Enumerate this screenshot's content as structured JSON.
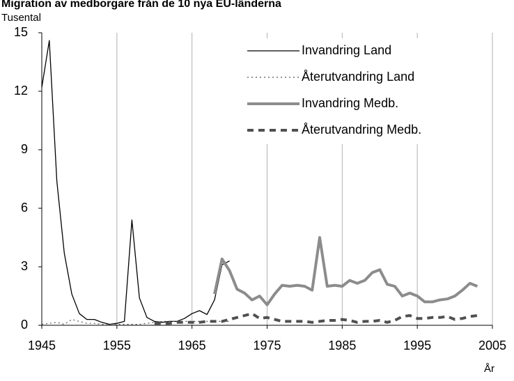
{
  "chart_data": {
    "type": "line",
    "title": "Migration av medborgare från de 10 nya EU-länderna",
    "y_label": "Tusental",
    "x_label": "År",
    "x": [
      1945,
      1946,
      1947,
      1948,
      1949,
      1950,
      1951,
      1952,
      1953,
      1954,
      1955,
      1956,
      1957,
      1958,
      1959,
      1960,
      1961,
      1962,
      1963,
      1964,
      1965,
      1966,
      1967,
      1968,
      1969,
      1970,
      1971,
      1972,
      1973,
      1974,
      1975,
      1976,
      1977,
      1978,
      1979,
      1980,
      1981,
      1982,
      1983,
      1984,
      1985,
      1986,
      1987,
      1988,
      1989,
      1990,
      1991,
      1992,
      1993,
      1994,
      1995,
      1996,
      1997,
      1998,
      1999,
      2000,
      2001,
      2002,
      2003
    ],
    "series": [
      {
        "name": "Invandring Land",
        "color": "#000000",
        "values": [
          12.2,
          14.6,
          7.4,
          3.7,
          1.6,
          0.6,
          0.3,
          0.3,
          0.15,
          0.05,
          0.1,
          0.2,
          5.4,
          1.4,
          0.4,
          0.2,
          0.15,
          0.2,
          0.2,
          0.35,
          0.6,
          0.75,
          0.55,
          1.3,
          3.1,
          3.3,
          null,
          null,
          null,
          null,
          null,
          null,
          null,
          null,
          null,
          null,
          null,
          null,
          null,
          null,
          null,
          null,
          null,
          null,
          null,
          null,
          null,
          null,
          null,
          null,
          null,
          null,
          null,
          null,
          null,
          null,
          null,
          null,
          null
        ]
      },
      {
        "name": "Återutvandring Land",
        "color": "#555555",
        "values": [
          0.05,
          0.1,
          0.15,
          0.05,
          0.3,
          0.2,
          0.1,
          0.1,
          0.05,
          0.05,
          0.05,
          0.05,
          0.05,
          0.05,
          0.1,
          0.15,
          0.2,
          0.2,
          0.2,
          0.2,
          0.2,
          0.2,
          0.2,
          0.2,
          0.2,
          0.2,
          null,
          null,
          null,
          null,
          null,
          null,
          null,
          null,
          null,
          null,
          null,
          null,
          null,
          null,
          null,
          null,
          null,
          null,
          null,
          null,
          null,
          null,
          null,
          null,
          null,
          null,
          null,
          null,
          null,
          null,
          null,
          null,
          null
        ]
      },
      {
        "name": "Invandring Medb.",
        "color": "#8c8c8c",
        "values": [
          null,
          null,
          null,
          null,
          null,
          null,
          null,
          null,
          null,
          null,
          null,
          null,
          null,
          null,
          null,
          null,
          null,
          null,
          null,
          null,
          null,
          null,
          null,
          1.6,
          3.4,
          2.8,
          1.85,
          1.65,
          1.3,
          1.5,
          1.05,
          1.6,
          2.05,
          2.0,
          2.05,
          2.0,
          1.8,
          4.5,
          2.0,
          2.05,
          2.0,
          2.3,
          2.15,
          2.3,
          2.7,
          2.85,
          2.1,
          2.0,
          1.5,
          1.65,
          1.5,
          1.2,
          1.2,
          1.3,
          1.35,
          1.5,
          1.8,
          2.15,
          2.0
        ]
      },
      {
        "name": "Återutvandring Medb.",
        "color": "#505050",
        "values": [
          null,
          null,
          null,
          null,
          null,
          null,
          null,
          null,
          null,
          null,
          null,
          null,
          null,
          null,
          null,
          0.1,
          0.1,
          0.1,
          0.15,
          0.15,
          0.15,
          0.15,
          0.2,
          0.2,
          0.2,
          0.3,
          0.4,
          0.5,
          0.6,
          0.35,
          0.4,
          0.3,
          0.2,
          0.2,
          0.2,
          0.2,
          0.15,
          0.2,
          0.25,
          0.25,
          0.3,
          0.25,
          0.15,
          0.2,
          0.2,
          0.25,
          0.15,
          0.25,
          0.45,
          0.5,
          0.35,
          0.35,
          0.4,
          0.4,
          0.45,
          0.3,
          0.35,
          0.45,
          0.5
        ]
      }
    ],
    "xlim": [
      1945,
      2005
    ],
    "xticks": [
      1945,
      1955,
      1965,
      1975,
      1985,
      1995,
      2005
    ],
    "ylim": [
      0,
      15
    ],
    "yticks": [
      0,
      3,
      6,
      9,
      12,
      15
    ],
    "grid": true,
    "legend": "upper right"
  }
}
